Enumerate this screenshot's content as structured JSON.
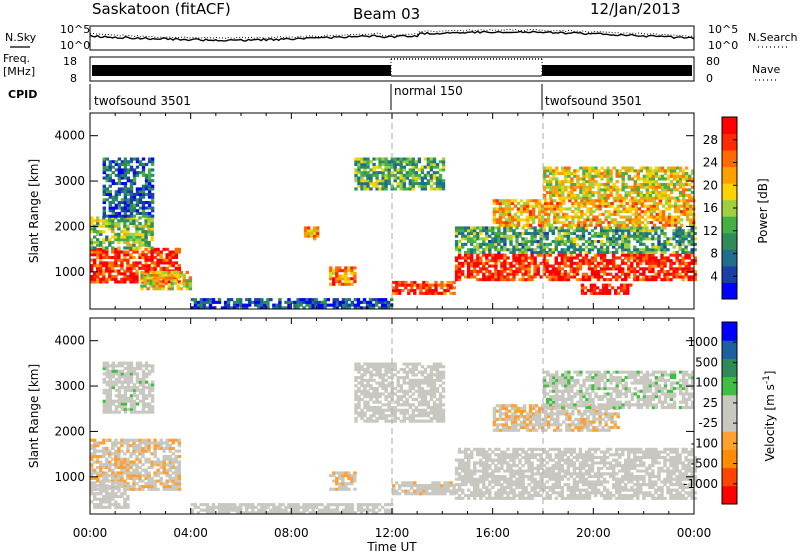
{
  "header": {
    "station": "Saskatoon (fitACF)",
    "beam": "Beam 03",
    "date": "12/Jan/2013"
  },
  "side_labels": {
    "nsky": "N.Sky",
    "nsearch": "N.Search",
    "nave": "Nave",
    "cpid": "CPID",
    "freq_line1": "Freq.",
    "freq_line2": "[MHz]"
  },
  "noise_axis": {
    "left_ticks": [
      "10^5",
      "10^0"
    ],
    "right_ticks": [
      "10^5",
      "10^0"
    ]
  },
  "freq_axis": {
    "left_ticks": [
      "18",
      "8"
    ],
    "right_ticks": [
      "80",
      "0"
    ]
  },
  "cpid_segments": [
    {
      "label": "twofsound 3501",
      "start": "00:00",
      "end": "12:00"
    },
    {
      "label": "normal 150",
      "start": "12:00",
      "end": "18:00"
    },
    {
      "label": "twofsound 3501",
      "start": "18:00",
      "end": "24:00"
    }
  ],
  "chart_data": [
    {
      "type": "heatmap",
      "panel": "power",
      "xlabel": "Time UT",
      "ylabel": "Slant Range [km]",
      "xlim": [
        "00:00",
        "24:00"
      ],
      "ylim": [
        180,
        4500
      ],
      "x_ticks": [
        "00:00",
        "04:00",
        "08:00",
        "12:00",
        "16:00",
        "20:00",
        "00:00"
      ],
      "y_ticks": [
        "1000",
        "2000",
        "3000",
        "4000"
      ],
      "colorbar": {
        "label": "Power [dB]",
        "ticks": [
          "28",
          "24",
          "20",
          "16",
          "12",
          "8",
          "4"
        ],
        "range": [
          0,
          30
        ],
        "colors": [
          "#0000ff",
          "#1a3fa8",
          "#1f6f8c",
          "#2f8c5a",
          "#45b045",
          "#9fd040",
          "#ffd200",
          "#ffa000",
          "#ff6a00",
          "#ff2a00",
          "#ff0000"
        ]
      },
      "regions": [
        {
          "t0": 0.0,
          "t1": 3.5,
          "r0": 750,
          "r1": 1500,
          "value": 26
        },
        {
          "t0": 0.0,
          "t1": 2.5,
          "r0": 1500,
          "r1": 2200,
          "value": 14
        },
        {
          "t0": 0.5,
          "t1": 2.5,
          "r0": 2200,
          "r1": 3500,
          "value": 6
        },
        {
          "t0": 2.0,
          "t1": 4.0,
          "r0": 600,
          "r1": 1000,
          "value": 18
        },
        {
          "t0": 4.0,
          "t1": 12.0,
          "r0": 180,
          "r1": 400,
          "value": 5
        },
        {
          "t0": 9.5,
          "t1": 10.5,
          "r0": 700,
          "r1": 1100,
          "value": 22
        },
        {
          "t0": 8.5,
          "t1": 9.0,
          "r0": 1700,
          "r1": 2000,
          "value": 20
        },
        {
          "t0": 10.5,
          "t1": 14.0,
          "r0": 2800,
          "r1": 3500,
          "value": 12
        },
        {
          "t0": 12.0,
          "t1": 14.5,
          "r0": 500,
          "r1": 800,
          "value": 26
        },
        {
          "t0": 14.5,
          "t1": 24.0,
          "r0": 800,
          "r1": 1400,
          "value": 27
        },
        {
          "t0": 14.5,
          "t1": 24.0,
          "r0": 1400,
          "r1": 2000,
          "value": 11
        },
        {
          "t0": 16.0,
          "t1": 24.0,
          "r0": 2000,
          "r1": 2600,
          "value": 20
        },
        {
          "t0": 18.0,
          "t1": 24.0,
          "r0": 2600,
          "r1": 3300,
          "value": 17
        },
        {
          "t0": 19.5,
          "t1": 21.5,
          "r0": 500,
          "r1": 700,
          "value": 29
        }
      ]
    },
    {
      "type": "heatmap",
      "panel": "velocity",
      "xlabel": "Time UT",
      "ylabel": "Slant Range [km]",
      "xlim": [
        "00:00",
        "24:00"
      ],
      "ylim": [
        180,
        4500
      ],
      "x_ticks": [
        "00:00",
        "04:00",
        "08:00",
        "12:00",
        "16:00",
        "20:00",
        "00:00"
      ],
      "y_ticks": [
        "1000",
        "2000",
        "3000",
        "4000"
      ],
      "colorbar": {
        "label": "Velocity [m s^-1]",
        "ticks": [
          "1000",
          "500",
          "100",
          "25",
          "-25",
          "-100",
          "-500",
          "-1000"
        ],
        "range": [
          -1200,
          1200
        ],
        "colors": [
          "#ff0000",
          "#ff4500",
          "#ff8c00",
          "#ffa030",
          "#c8c8c0",
          "#c8c8c0",
          "#3fbf3f",
          "#2e8b57",
          "#1e5fa0",
          "#0000ff"
        ]
      },
      "regions": [
        {
          "t0": 0.0,
          "t1": 3.5,
          "r0": 700,
          "r1": 1800,
          "value": -200
        },
        {
          "t0": 0.0,
          "t1": 1.5,
          "r0": 300,
          "r1": 900,
          "value": 0
        },
        {
          "t0": 0.5,
          "t1": 2.5,
          "r0": 2400,
          "r1": 3500,
          "value": 150
        },
        {
          "t0": 4.0,
          "t1": 12.0,
          "r0": 180,
          "r1": 400,
          "value": 60
        },
        {
          "t0": 9.5,
          "t1": 10.5,
          "r0": 700,
          "r1": 1100,
          "value": -200
        },
        {
          "t0": 10.5,
          "t1": 14.0,
          "r0": 2200,
          "r1": 3500,
          "value": 0
        },
        {
          "t0": 12.0,
          "t1": 14.5,
          "r0": 600,
          "r1": 900,
          "value": -150
        },
        {
          "t0": 14.5,
          "t1": 24.0,
          "r0": 500,
          "r1": 1600,
          "value": 0
        },
        {
          "t0": 16.0,
          "t1": 21.0,
          "r0": 2000,
          "r1": 2600,
          "value": -200
        },
        {
          "t0": 18.0,
          "t1": 24.0,
          "r0": 2500,
          "r1": 3300,
          "value": 150
        }
      ]
    }
  ]
}
